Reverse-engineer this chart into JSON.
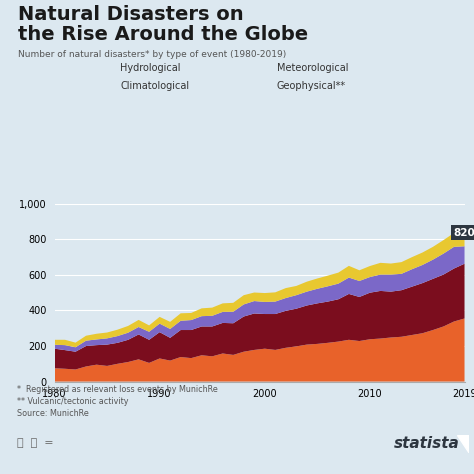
{
  "title_line1": "Natural Disasters on",
  "title_line2": "the Rise Around the Globe",
  "subtitle": "Number of natural disasters* by type of event (1980-2019)",
  "accent_color": "#E8622A",
  "bg_color": "#dce8f0",
  "years": [
    1980,
    1981,
    1982,
    1983,
    1984,
    1985,
    1986,
    1987,
    1988,
    1989,
    1990,
    1991,
    1992,
    1993,
    1994,
    1995,
    1996,
    1997,
    1998,
    1999,
    2000,
    2001,
    2002,
    2003,
    2004,
    2005,
    2006,
    2007,
    2008,
    2009,
    2010,
    2011,
    2012,
    2013,
    2014,
    2015,
    2016,
    2017,
    2018,
    2019
  ],
  "hydrological": [
    75,
    72,
    68,
    85,
    95,
    88,
    100,
    110,
    125,
    105,
    130,
    118,
    138,
    132,
    148,
    142,
    158,
    150,
    168,
    178,
    185,
    178,
    190,
    198,
    208,
    212,
    218,
    225,
    235,
    228,
    238,
    242,
    248,
    252,
    262,
    272,
    290,
    310,
    338,
    355
  ],
  "meteorological": [
    110,
    105,
    100,
    115,
    110,
    120,
    118,
    125,
    140,
    130,
    148,
    128,
    152,
    158,
    162,
    168,
    172,
    178,
    198,
    205,
    195,
    202,
    208,
    212,
    220,
    228,
    232,
    238,
    258,
    248,
    262,
    268,
    258,
    262,
    272,
    282,
    288,
    292,
    298,
    308
  ],
  "climatological": [
    22,
    28,
    25,
    30,
    32,
    35,
    38,
    40,
    42,
    45,
    48,
    50,
    52,
    56,
    58,
    60,
    62,
    65,
    68,
    70,
    68,
    70,
    72,
    76,
    78,
    82,
    86,
    88,
    92,
    90,
    88,
    92,
    96,
    92,
    98,
    102,
    108,
    118,
    122,
    98
  ],
  "geophysical": [
    28,
    30,
    26,
    28,
    32,
    33,
    36,
    38,
    40,
    36,
    38,
    40,
    42,
    40,
    44,
    46,
    48,
    50,
    52,
    48,
    50,
    52,
    56,
    52,
    56,
    58,
    60,
    62,
    66,
    60,
    62,
    66,
    62,
    66,
    68,
    70,
    72,
    76,
    78,
    48
  ],
  "colors": {
    "hydrological": "#E8622A",
    "meteorological": "#7B0D1E",
    "climatological": "#7B68C8",
    "geophysical": "#E8C830"
  },
  "legend_labels": [
    "Hydrological",
    "Meteorological",
    "Climatological",
    "Geophysical**"
  ],
  "ylim": [
    0,
    1000
  ],
  "yticks": [
    0,
    200,
    400,
    600,
    800,
    1000
  ],
  "annotation_value": "820",
  "footnote1": "*  Registered as relevant loss events by MunichRe",
  "footnote2": "** Vulcanic/tectonic activity",
  "footnote3": "Source: MunichRe",
  "statista_text": "statista"
}
